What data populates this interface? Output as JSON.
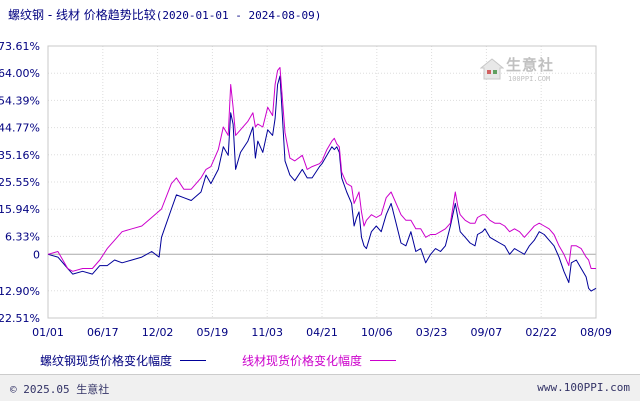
{
  "title": {
    "main": "螺纹钢 - 线材 价格趋势比较",
    "range": "(2020-01-01 - 2024-08-09)"
  },
  "logo": {
    "brand": "生意社",
    "site": "100PPI.COM",
    "icon": "house-logo-icon"
  },
  "footer": {
    "copyright": "© 2025.05 生意社",
    "url": "www.100PPI.com"
  },
  "colors": {
    "series1": "#000099",
    "series2": "#cc00cc",
    "text": "#000080",
    "grid": "#d8d8d8"
  },
  "chart_data": {
    "type": "line",
    "xlabel": "",
    "ylabel": "",
    "x_ticks": [
      "01/01",
      "06/17",
      "12/02",
      "05/19",
      "11/03",
      "04/21",
      "10/06",
      "03/23",
      "09/07",
      "02/22",
      "08/09"
    ],
    "y_tick_labels": [
      "73.61%",
      "64.00%",
      "54.39%",
      "44.77%",
      "35.16%",
      "25.55%",
      "15.94%",
      "6.33%",
      "0",
      "-12.90%",
      "-22.51%"
    ],
    "y_tick_values": [
      73.61,
      64.0,
      54.39,
      44.77,
      35.16,
      25.55,
      15.94,
      6.33,
      0,
      -12.9,
      -22.51
    ],
    "ylim": [
      -22.51,
      73.61
    ],
    "grid": true,
    "legend": "bottom",
    "series": [
      {
        "name": "螺纹钢现货价格变化幅度",
        "color": "#000099",
        "points": [
          [
            0,
            0
          ],
          [
            4,
            -1
          ],
          [
            8,
            -5
          ],
          [
            10,
            -7
          ],
          [
            14,
            -6
          ],
          [
            18,
            -7
          ],
          [
            21,
            -4
          ],
          [
            24,
            -4
          ],
          [
            27,
            -2
          ],
          [
            30,
            -3
          ],
          [
            34,
            -2
          ],
          [
            38,
            -1
          ],
          [
            42,
            1
          ],
          [
            45,
            -1
          ],
          [
            46,
            6
          ],
          [
            50,
            16
          ],
          [
            52,
            21
          ],
          [
            55,
            20
          ],
          [
            58,
            19
          ],
          [
            62,
            22
          ],
          [
            64,
            28
          ],
          [
            66,
            25
          ],
          [
            69,
            30
          ],
          [
            71,
            38
          ],
          [
            73,
            35
          ],
          [
            74,
            50
          ],
          [
            75,
            46
          ],
          [
            76,
            30
          ],
          [
            78,
            36
          ],
          [
            81,
            40
          ],
          [
            83,
            45
          ],
          [
            84,
            34
          ],
          [
            85,
            40
          ],
          [
            87,
            36
          ],
          [
            89,
            44
          ],
          [
            91,
            42
          ],
          [
            92,
            48
          ],
          [
            93,
            60
          ],
          [
            94,
            63
          ],
          [
            96,
            33
          ],
          [
            98,
            28
          ],
          [
            100,
            26
          ],
          [
            103,
            30
          ],
          [
            105,
            27
          ],
          [
            107,
            27
          ],
          [
            110,
            31
          ],
          [
            111,
            32
          ],
          [
            113,
            35
          ],
          [
            115,
            38
          ],
          [
            116,
            37
          ],
          [
            117,
            38
          ],
          [
            118,
            36
          ],
          [
            119,
            27
          ],
          [
            121,
            22
          ],
          [
            123,
            18
          ],
          [
            124,
            10
          ],
          [
            125,
            13
          ],
          [
            126,
            15
          ],
          [
            127,
            6
          ],
          [
            128,
            3
          ],
          [
            129,
            2
          ],
          [
            131,
            8
          ],
          [
            133,
            10
          ],
          [
            135,
            8
          ],
          [
            137,
            14
          ],
          [
            139,
            18
          ],
          [
            141,
            11
          ],
          [
            143,
            4
          ],
          [
            145,
            3
          ],
          [
            147,
            8
          ],
          [
            149,
            1
          ],
          [
            151,
            2
          ],
          [
            153,
            -3
          ],
          [
            155,
            0
          ],
          [
            157,
            2
          ],
          [
            159,
            1
          ],
          [
            161,
            3
          ],
          [
            163,
            10
          ],
          [
            165,
            18
          ],
          [
            166,
            13
          ],
          [
            167,
            8
          ],
          [
            169,
            6
          ],
          [
            171,
            4
          ],
          [
            173,
            3
          ],
          [
            174,
            7
          ],
          [
            176,
            8
          ],
          [
            177,
            9
          ],
          [
            179,
            6
          ],
          [
            181,
            5
          ],
          [
            183,
            4
          ],
          [
            185,
            3
          ],
          [
            187,
            0
          ],
          [
            189,
            2
          ],
          [
            191,
            1
          ],
          [
            193,
            0
          ],
          [
            195,
            3
          ],
          [
            197,
            5
          ],
          [
            199,
            8
          ],
          [
            201,
            7
          ],
          [
            203,
            5
          ],
          [
            205,
            3
          ],
          [
            207,
            -1
          ],
          [
            209,
            -6
          ],
          [
            211,
            -10
          ],
          [
            212,
            -3
          ],
          [
            214,
            -2
          ],
          [
            216,
            -5
          ],
          [
            218,
            -8
          ],
          [
            219,
            -12
          ],
          [
            220,
            -13
          ],
          [
            222,
            -12
          ]
        ]
      },
      {
        "name": "线材现货价格变化幅度",
        "color": "#cc00cc",
        "points": [
          [
            0,
            0
          ],
          [
            4,
            1
          ],
          [
            6,
            -2
          ],
          [
            8,
            -5
          ],
          [
            10,
            -6
          ],
          [
            14,
            -5
          ],
          [
            18,
            -5
          ],
          [
            21,
            -2
          ],
          [
            24,
            2
          ],
          [
            27,
            5
          ],
          [
            30,
            8
          ],
          [
            34,
            9
          ],
          [
            38,
            10
          ],
          [
            42,
            13
          ],
          [
            46,
            16
          ],
          [
            50,
            25
          ],
          [
            52,
            27
          ],
          [
            55,
            23
          ],
          [
            58,
            23
          ],
          [
            62,
            27
          ],
          [
            64,
            30
          ],
          [
            66,
            31
          ],
          [
            69,
            37
          ],
          [
            71,
            45
          ],
          [
            73,
            42
          ],
          [
            74,
            60
          ],
          [
            75,
            52
          ],
          [
            76,
            42
          ],
          [
            78,
            44
          ],
          [
            81,
            47
          ],
          [
            83,
            50
          ],
          [
            84,
            45
          ],
          [
            85,
            46
          ],
          [
            87,
            45
          ],
          [
            89,
            52
          ],
          [
            91,
            49
          ],
          [
            92,
            60
          ],
          [
            93,
            65
          ],
          [
            94,
            66
          ],
          [
            96,
            43
          ],
          [
            98,
            34
          ],
          [
            100,
            33
          ],
          [
            103,
            35
          ],
          [
            105,
            30
          ],
          [
            107,
            31
          ],
          [
            110,
            32
          ],
          [
            111,
            33
          ],
          [
            113,
            37
          ],
          [
            115,
            40
          ],
          [
            116,
            41
          ],
          [
            117,
            39
          ],
          [
            118,
            38
          ],
          [
            119,
            29
          ],
          [
            121,
            25
          ],
          [
            123,
            24
          ],
          [
            124,
            18
          ],
          [
            125,
            20
          ],
          [
            126,
            22
          ],
          [
            127,
            15
          ],
          [
            128,
            10
          ],
          [
            129,
            12
          ],
          [
            131,
            14
          ],
          [
            133,
            13
          ],
          [
            135,
            14
          ],
          [
            137,
            20
          ],
          [
            139,
            22
          ],
          [
            141,
            18
          ],
          [
            143,
            14
          ],
          [
            145,
            12
          ],
          [
            147,
            12
          ],
          [
            149,
            9
          ],
          [
            151,
            9
          ],
          [
            153,
            6
          ],
          [
            155,
            7
          ],
          [
            157,
            7
          ],
          [
            159,
            8
          ],
          [
            161,
            9
          ],
          [
            163,
            11
          ],
          [
            165,
            22
          ],
          [
            166,
            17
          ],
          [
            167,
            14
          ],
          [
            169,
            12
          ],
          [
            171,
            11
          ],
          [
            173,
            11
          ],
          [
            174,
            13
          ],
          [
            176,
            14
          ],
          [
            177,
            14
          ],
          [
            179,
            12
          ],
          [
            181,
            11
          ],
          [
            183,
            11
          ],
          [
            185,
            10
          ],
          [
            187,
            8
          ],
          [
            189,
            9
          ],
          [
            191,
            8
          ],
          [
            193,
            6
          ],
          [
            195,
            8
          ],
          [
            197,
            10
          ],
          [
            199,
            11
          ],
          [
            201,
            10
          ],
          [
            203,
            9
          ],
          [
            205,
            7
          ],
          [
            207,
            3
          ],
          [
            209,
            0
          ],
          [
            211,
            -4
          ],
          [
            212,
            3
          ],
          [
            214,
            3
          ],
          [
            216,
            2
          ],
          [
            218,
            -1
          ],
          [
            219,
            -2
          ],
          [
            220,
            -5
          ],
          [
            222,
            -5
          ]
        ]
      }
    ]
  }
}
